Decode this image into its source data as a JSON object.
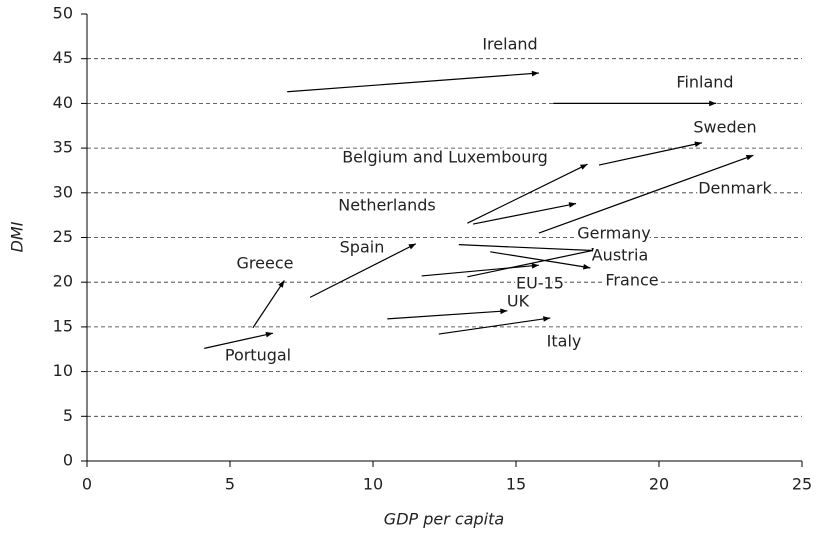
{
  "chart_data": {
    "type": "arrow",
    "xlabel": "GDP per capita",
    "ylabel": "DMI",
    "xlim": [
      0,
      25
    ],
    "ylim": [
      0,
      50
    ],
    "xticks": [
      0,
      5,
      10,
      15,
      20,
      25
    ],
    "yticks": [
      0,
      5,
      10,
      15,
      20,
      25,
      30,
      35,
      40,
      45,
      50
    ],
    "grid": true,
    "color": "#000000",
    "series": [
      {
        "name": "Ireland",
        "x": [
          7.0,
          15.8
        ],
        "values": [
          41.3,
          43.4
        ]
      },
      {
        "name": "Finland",
        "x": [
          16.3,
          22.0
        ],
        "values": [
          40.0,
          40.0
        ]
      },
      {
        "name": "Sweden",
        "x": [
          17.9,
          21.5
        ],
        "values": [
          33.1,
          35.6
        ]
      },
      {
        "name": "Belgium and Luxembourg",
        "x": [
          13.3,
          17.5
        ],
        "values": [
          26.6,
          33.2
        ]
      },
      {
        "name": "Netherlands",
        "x": [
          13.5,
          17.1
        ],
        "values": [
          26.5,
          28.8
        ]
      },
      {
        "name": "Denmark",
        "x": [
          15.8,
          23.3
        ],
        "values": [
          25.5,
          34.2
        ]
      },
      {
        "name": "Germany",
        "x": [
          13.0,
          18.0
        ],
        "values": [
          24.2,
          23.5
        ]
      },
      {
        "name": "Spain",
        "x": [
          7.8,
          11.5
        ],
        "values": [
          18.3,
          24.3
        ]
      },
      {
        "name": "Austria",
        "x": [
          13.3,
          17.9
        ],
        "values": [
          20.6,
          23.7
        ]
      },
      {
        "name": "Greece",
        "x": [
          5.8,
          6.9
        ],
        "values": [
          14.9,
          20.2
        ]
      },
      {
        "name": "France",
        "x": [
          14.1,
          17.6
        ],
        "values": [
          23.4,
          21.6
        ]
      },
      {
        "name": "EU-15",
        "x": [
          11.7,
          15.8
        ],
        "values": [
          20.7,
          21.9
        ]
      },
      {
        "name": "UK",
        "x": [
          10.5,
          14.7
        ],
        "values": [
          15.9,
          16.8
        ]
      },
      {
        "name": "Italy",
        "x": [
          12.3,
          16.2
        ],
        "values": [
          14.2,
          16.0
        ]
      },
      {
        "name": "Portugal",
        "x": [
          4.1,
          6.5
        ],
        "values": [
          12.6,
          14.3
        ]
      }
    ]
  }
}
